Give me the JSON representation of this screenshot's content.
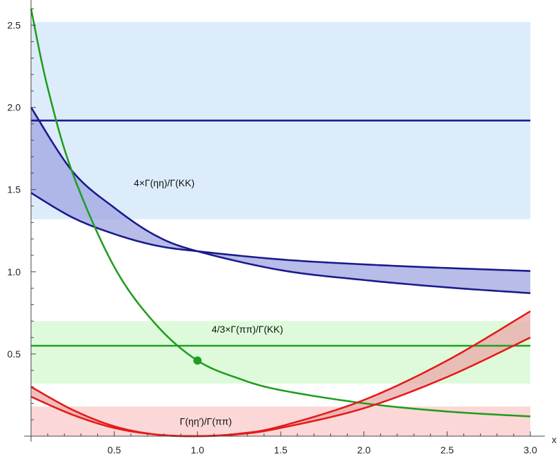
{
  "chart_data": {
    "type": "line",
    "xlabel": "x",
    "ylabel": "",
    "xlim": [
      0,
      3.0
    ],
    "ylim": [
      0,
      2.62
    ],
    "x_ticks": [
      "0.5",
      "1.0",
      "1.5",
      "2.0",
      "2.5",
      "3.0"
    ],
    "y_ticks": [
      "0.5",
      "1.0",
      "1.5",
      "2.0",
      "2.5"
    ],
    "bands": [
      {
        "y": [
          1.32,
          2.52
        ],
        "color": "#dcecfb"
      },
      {
        "y": [
          0.32,
          0.7
        ],
        "color": "#defadb"
      },
      {
        "y": [
          0.0,
          0.18
        ],
        "color": "#fbd7d7"
      }
    ],
    "horizontal_lines": [
      {
        "y": 1.92,
        "color": "#1a1a8c"
      },
      {
        "y": 0.55,
        "color": "#1f9e1f"
      }
    ],
    "series": [
      {
        "color": "#1a1a8c",
        "x": [
          0,
          0.25,
          0.5,
          0.75,
          1.0,
          1.5,
          2.0,
          2.5,
          3.0
        ],
        "values": [
          1.48,
          1.33,
          1.23,
          1.16,
          1.125,
          1.075,
          1.045,
          1.023,
          1.005
        ]
      },
      {
        "color": "#1a1a8c",
        "x": [
          0,
          0.25,
          0.5,
          0.75,
          1.0,
          1.5,
          2.0,
          2.5,
          3.0
        ],
        "values": [
          2.0,
          1.61,
          1.39,
          1.22,
          1.125,
          1.01,
          0.95,
          0.905,
          0.87
        ]
      },
      {
        "color": "#1f9e1f",
        "x": [
          0,
          0.1,
          0.25,
          0.5,
          0.75,
          1.0,
          1.25,
          1.5,
          2.0,
          2.5,
          3.0
        ],
        "values": [
          2.6,
          2.12,
          1.6,
          1.03,
          0.68,
          0.46,
          0.35,
          0.28,
          0.2,
          0.15,
          0.12
        ]
      },
      {
        "color": "#e51a1a",
        "x": [
          0,
          0.25,
          0.5,
          0.75,
          1.0,
          1.25,
          1.5,
          2.0,
          2.5,
          3.0
        ],
        "values": [
          0.3,
          0.16,
          0.06,
          0.01,
          0.0,
          0.015,
          0.06,
          0.22,
          0.46,
          0.76
        ]
      },
      {
        "color": "#e51a1a",
        "x": [
          0,
          0.25,
          0.5,
          0.75,
          1.0,
          1.25,
          1.5,
          2.0,
          2.5,
          3.0
        ],
        "values": [
          0.24,
          0.13,
          0.05,
          0.01,
          0.0,
          0.012,
          0.05,
          0.17,
          0.36,
          0.6
        ]
      }
    ],
    "fills": [
      {
        "between": [
          0,
          1
        ],
        "color": "#9fa5e0"
      },
      {
        "between": [
          3,
          4
        ],
        "color": "#eaa9a9"
      }
    ],
    "points": [
      {
        "x": 1.0,
        "y": 0.46,
        "color": "#1f9e1f"
      }
    ],
    "annotations": [
      {
        "text": "4×Γ(ηη)/Γ(KK)",
        "x": 0.8,
        "y": 1.52
      },
      {
        "text": "4/3×Γ(ππ)/Γ(KK)",
        "x": 1.3,
        "y": 0.63
      },
      {
        "text": "Γ(ηη′)/Γ(ππ)",
        "x": 1.05,
        "y": 0.07
      }
    ]
  }
}
